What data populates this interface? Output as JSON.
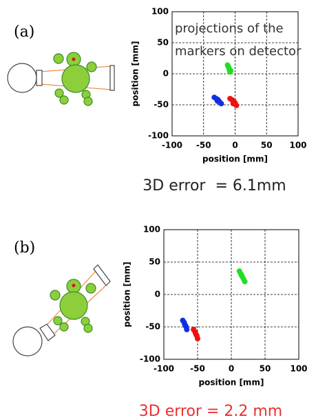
{
  "chart_data": [
    {
      "type": "scatter",
      "label": "(a)",
      "annotation": [
        "projections of the",
        "markers on detector"
      ],
      "xlabel": "position [mm]",
      "ylabel": "position [mm]",
      "caption": "3D error  = 6.1mm",
      "caption_color": "#222222",
      "xlim": [
        -100,
        100
      ],
      "ylim": [
        -100,
        100
      ],
      "xticks": [
        -100,
        -50,
        0,
        50,
        100
      ],
      "yticks": [
        -100,
        -50,
        0,
        50,
        100
      ],
      "grid": true,
      "series": [
        {
          "color": "#22dd22",
          "x": [
            -12,
            -10,
            -9,
            -8,
            -11,
            -7
          ],
          "y": [
            14,
            10,
            6,
            3,
            12,
            5
          ]
        },
        {
          "color": "#1030e0",
          "x": [
            -33,
            -30,
            -27,
            -25,
            -22,
            -28
          ],
          "y": [
            -38,
            -40,
            -42,
            -45,
            -48,
            -44
          ]
        },
        {
          "color": "#ee1111",
          "x": [
            -8,
            -5,
            -2,
            0,
            2,
            -3
          ],
          "y": [
            -40,
            -42,
            -44,
            -47,
            -51,
            -48
          ]
        }
      ]
    },
    {
      "type": "scatter",
      "label": "(b)",
      "xlabel": "position [mm]",
      "ylabel": "position [mm]",
      "caption": "3D error = 2.2 mm",
      "caption_color": "#e83030",
      "xlim": [
        -100,
        100
      ],
      "ylim": [
        -100,
        100
      ],
      "xticks": [
        -100,
        -50,
        0,
        50,
        100
      ],
      "yticks": [
        -100,
        -50,
        0,
        50,
        100
      ],
      "grid": true,
      "series": [
        {
          "color": "#22dd22",
          "x": [
            12,
            14,
            16,
            18,
            20,
            15
          ],
          "y": [
            36,
            32,
            28,
            24,
            20,
            30
          ]
        },
        {
          "color": "#1030e0",
          "x": [
            -72,
            -70,
            -69,
            -67,
            -66,
            -68
          ],
          "y": [
            -40,
            -43,
            -46,
            -50,
            -54,
            -48
          ]
        },
        {
          "color": "#ee1111",
          "x": [
            -56,
            -54,
            -53,
            -51,
            -50,
            -52
          ],
          "y": [
            -54,
            -57,
            -60,
            -64,
            -68,
            -62
          ]
        }
      ]
    }
  ]
}
